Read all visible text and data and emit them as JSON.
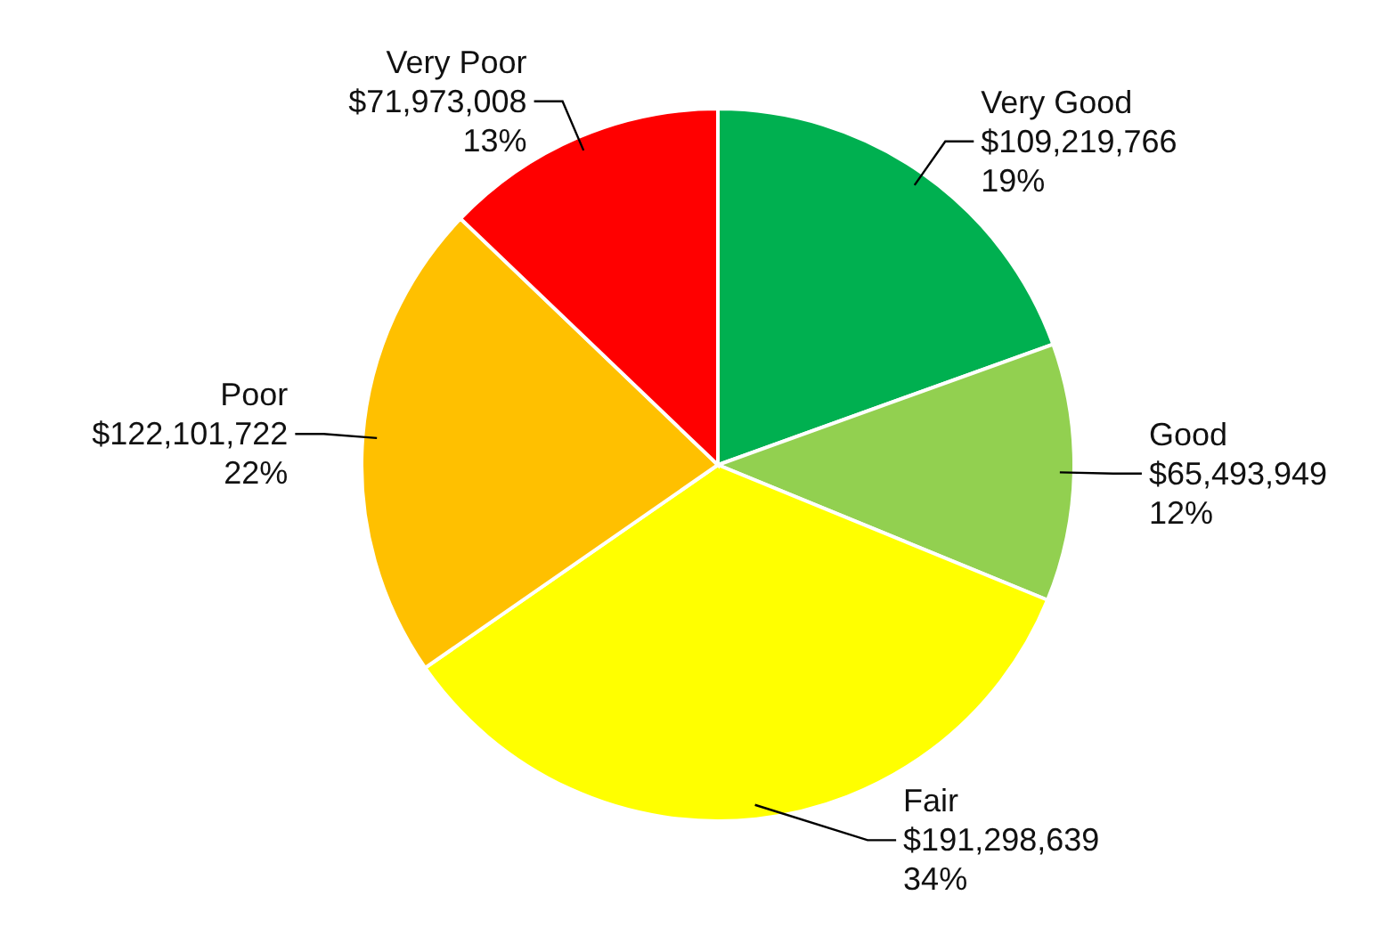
{
  "chart_data": {
    "type": "pie",
    "categories": [
      "Very Good",
      "Good",
      "Fair",
      "Poor",
      "Very Poor"
    ],
    "values": [
      109219766,
      65493949,
      191298639,
      122101722,
      71973008
    ],
    "colors": [
      "#00b050",
      "#92d050",
      "#ffff00",
      "#ffc000",
      "#ff0000"
    ],
    "value_labels": [
      "$109,219,766\n19%",
      "$65,493,949\n12%",
      "$191,298,639\n34%",
      "$122,101,722\n22%",
      "$71,973,008\n13%"
    ],
    "legend": false
  }
}
